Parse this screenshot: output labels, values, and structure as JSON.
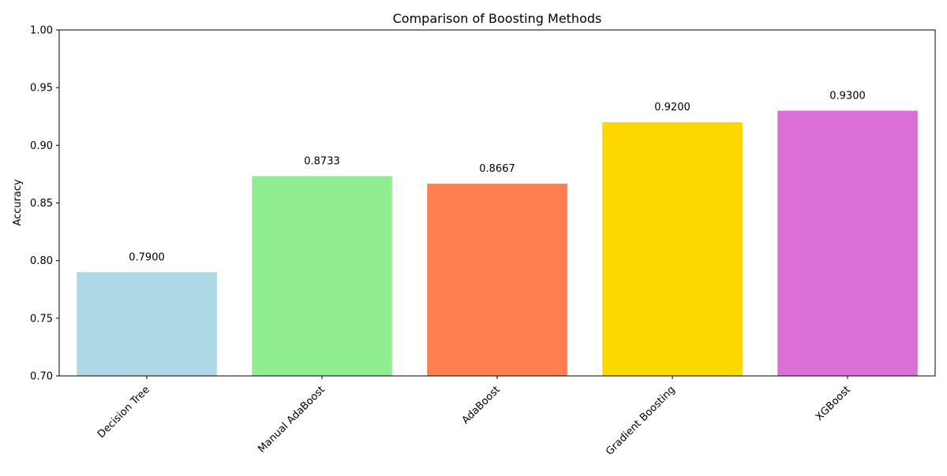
{
  "chart_data": {
    "type": "bar",
    "title": "Comparison of Boosting Methods",
    "xlabel": "",
    "ylabel": "Accuracy",
    "ylim": [
      0.7,
      1.0
    ],
    "yticks": [
      0.7,
      0.75,
      0.8,
      0.85,
      0.9,
      0.95,
      1.0
    ],
    "ytick_labels": [
      "0.70",
      "0.75",
      "0.80",
      "0.85",
      "0.90",
      "0.95",
      "1.00"
    ],
    "grid": false,
    "categories": [
      "Decision Tree",
      "Manual AdaBoost",
      "AdaBoost",
      "Gradient Boosting",
      "XGBoost"
    ],
    "values": [
      0.79,
      0.8733,
      0.8667,
      0.92,
      0.93
    ],
    "value_labels": [
      "0.7900",
      "0.8733",
      "0.8667",
      "0.9200",
      "0.9300"
    ],
    "colors": [
      "#add8e6",
      "#90ee90",
      "#ff7f50",
      "#ffd700",
      "#da70d6"
    ],
    "xtick_rotation": 45
  }
}
